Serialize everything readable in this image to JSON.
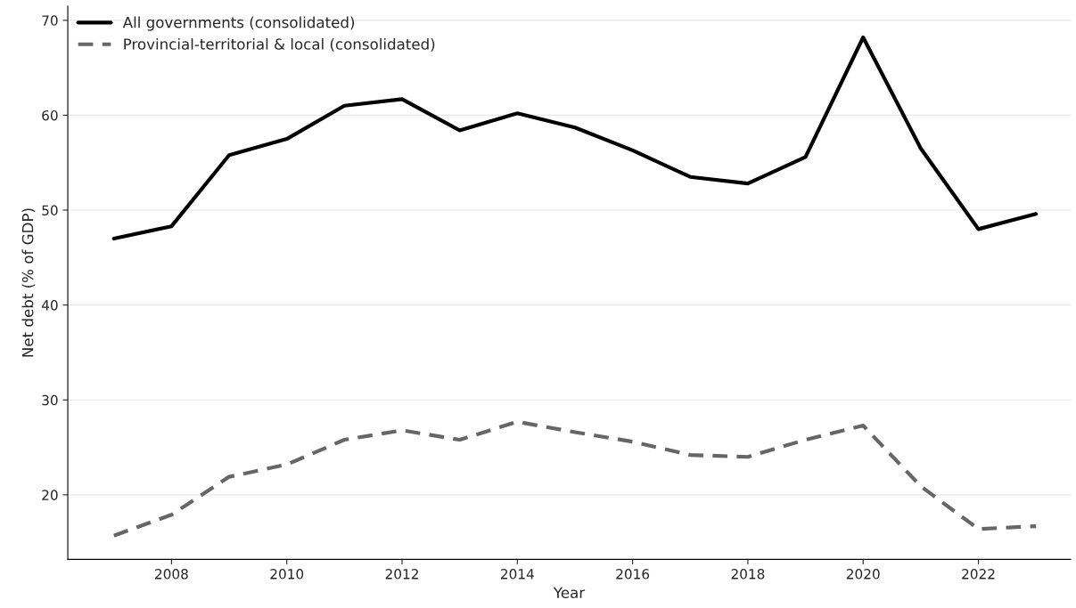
{
  "chart_data": {
    "type": "line",
    "xlabel": "Year",
    "ylabel": "Net debt (% of GDP)",
    "x": [
      2007,
      2008,
      2009,
      2010,
      2011,
      2012,
      2013,
      2014,
      2015,
      2016,
      2017,
      2018,
      2019,
      2020,
      2021,
      2022,
      2023
    ],
    "series": [
      {
        "name": "All governments (consolidated)",
        "color": "#000000",
        "line_style": "solid",
        "values": [
          47.0,
          48.3,
          55.8,
          57.5,
          61.0,
          61.7,
          58.4,
          60.2,
          58.7,
          56.3,
          53.5,
          52.8,
          55.6,
          68.2,
          56.5,
          48.0,
          49.6
        ]
      },
      {
        "name": "Provincial-territorial & local (consolidated)",
        "color": "#666666",
        "line_style": "dashed",
        "values": [
          15.7,
          17.9,
          21.9,
          23.2,
          25.8,
          26.8,
          25.8,
          27.7,
          26.6,
          25.6,
          24.2,
          24.0,
          25.8,
          27.3,
          20.9,
          16.4,
          16.7
        ]
      }
    ],
    "xlim": [
      2006.2,
      2023.6
    ],
    "xticks": [
      2008,
      2010,
      2012,
      2014,
      2016,
      2018,
      2020,
      2022
    ],
    "ylim": [
      13.2,
      71.5
    ],
    "yticks": [
      20,
      30,
      40,
      50,
      60,
      70
    ],
    "grid": "y",
    "legend": "top left"
  }
}
